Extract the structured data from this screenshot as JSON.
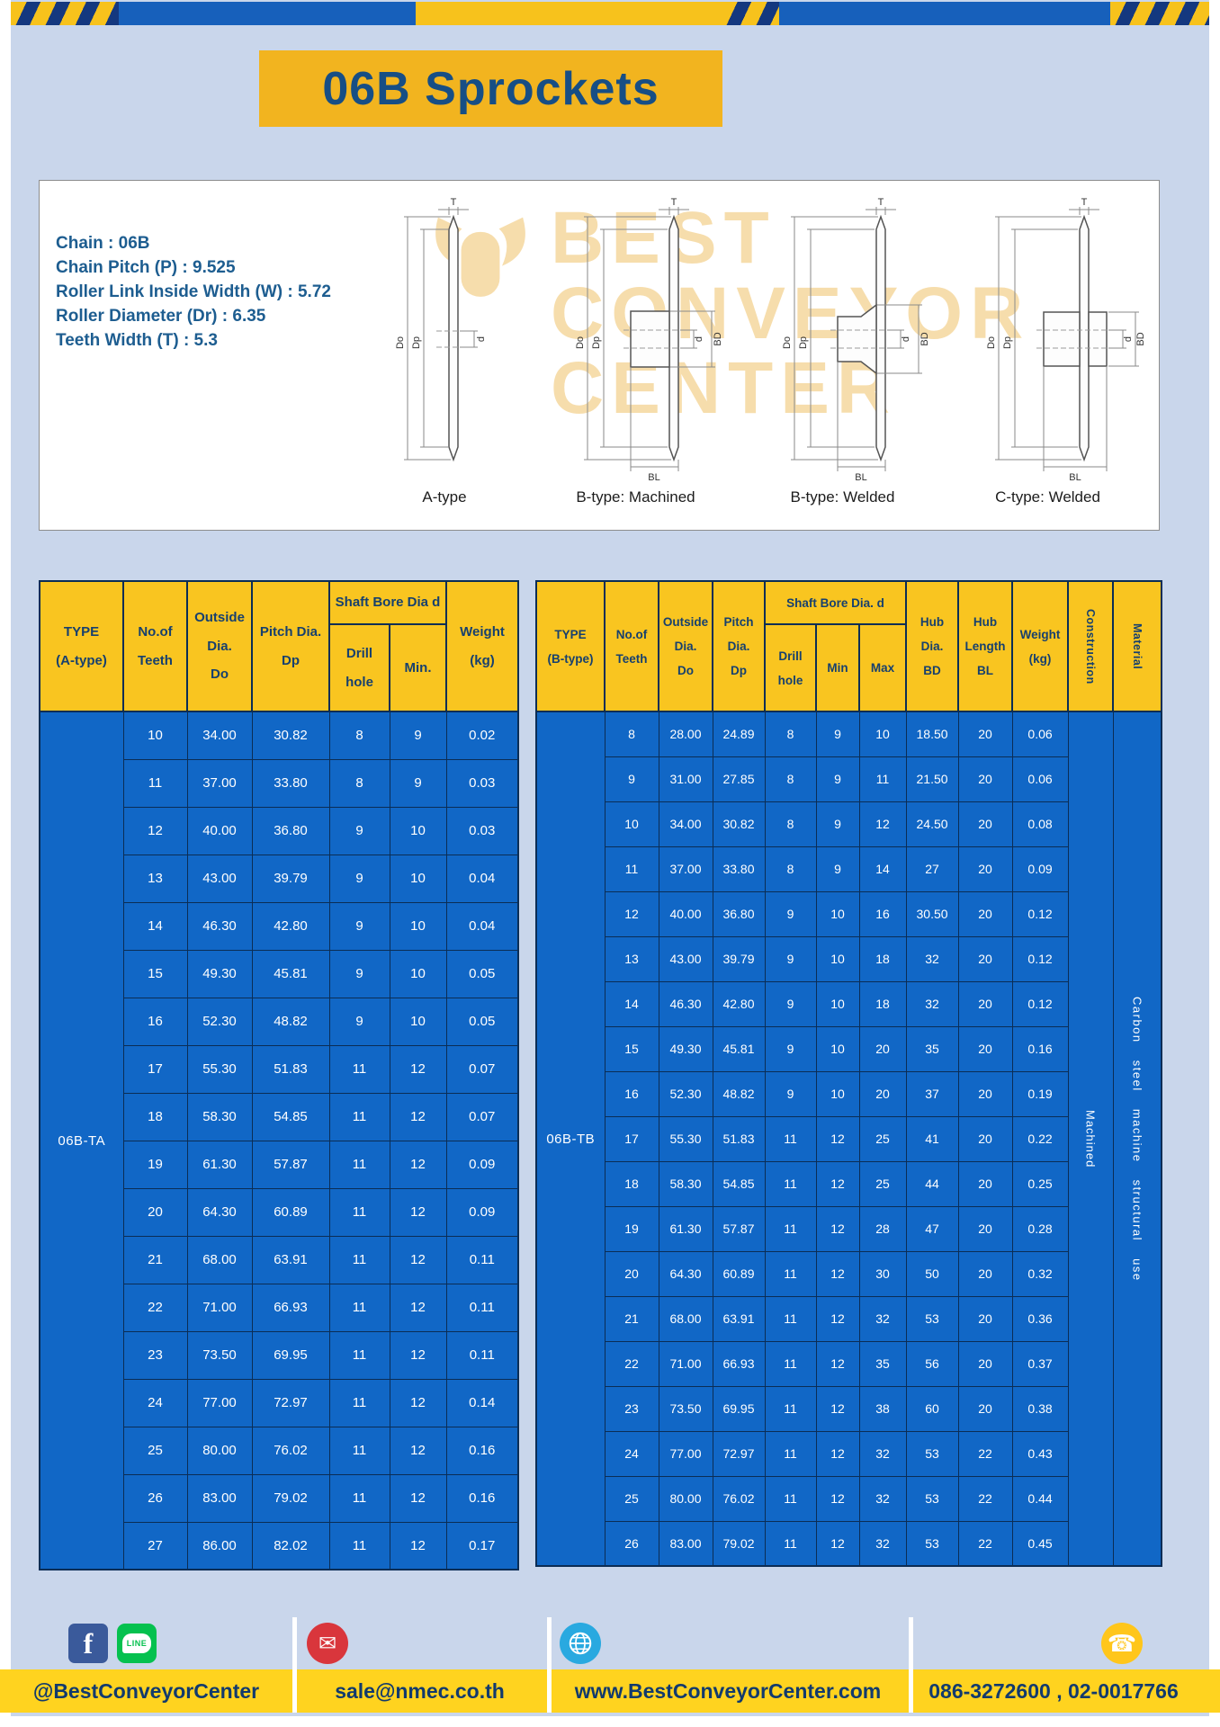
{
  "title": "06B Sprockets",
  "colors": {
    "table_blue": "#1167c6",
    "header_yellow": "#f9c520",
    "banner_yellow": "#f2b41f",
    "footer_yellow": "#ffd31f",
    "dark_blue_text": "#174e85"
  },
  "specs": {
    "lines": [
      "Chain : 06B",
      "Chain Pitch (P) : 9.525",
      "Roller Link Inside Width (W) : 5.72",
      "Roller Diameter (Dr) : 6.35",
      "Teeth Width (T) : 5.3"
    ]
  },
  "diagrams": {
    "captions": [
      "A-type",
      "B-type: Machined",
      "B-type: Welded",
      "C-type: Welded"
    ],
    "labels": {
      "t": "T",
      "do": "Do",
      "dp": "Dp",
      "d": "d",
      "bd": "BD",
      "bl": "BL"
    },
    "watermark_lines": [
      "BEST",
      "CONVEYOR",
      "CENTER"
    ]
  },
  "table_a": {
    "type_header": "TYPE\n(A-type)",
    "type_value": "06B-TA",
    "headers": {
      "teeth": "No.of\nTeeth",
      "outside": "Outside\nDia.\nDo",
      "pitch": "Pitch Dia.\nDp",
      "bore_group": "Shaft Bore Dia d",
      "drill": "Drill hole",
      "min": "Min.",
      "weight": "Weight\n(kg)"
    },
    "rows": [
      [
        "10",
        "34.00",
        "30.82",
        "8",
        "9",
        "0.02"
      ],
      [
        "11",
        "37.00",
        "33.80",
        "8",
        "9",
        "0.03"
      ],
      [
        "12",
        "40.00",
        "36.80",
        "9",
        "10",
        "0.03"
      ],
      [
        "13",
        "43.00",
        "39.79",
        "9",
        "10",
        "0.04"
      ],
      [
        "14",
        "46.30",
        "42.80",
        "9",
        "10",
        "0.04"
      ],
      [
        "15",
        "49.30",
        "45.81",
        "9",
        "10",
        "0.05"
      ],
      [
        "16",
        "52.30",
        "48.82",
        "9",
        "10",
        "0.05"
      ],
      [
        "17",
        "55.30",
        "51.83",
        "11",
        "12",
        "0.07"
      ],
      [
        "18",
        "58.30",
        "54.85",
        "11",
        "12",
        "0.07"
      ],
      [
        "19",
        "61.30",
        "57.87",
        "11",
        "12",
        "0.09"
      ],
      [
        "20",
        "64.30",
        "60.89",
        "11",
        "12",
        "0.09"
      ],
      [
        "21",
        "68.00",
        "63.91",
        "11",
        "12",
        "0.11"
      ],
      [
        "22",
        "71.00",
        "66.93",
        "11",
        "12",
        "0.11"
      ],
      [
        "23",
        "73.50",
        "69.95",
        "11",
        "12",
        "0.11"
      ],
      [
        "24",
        "77.00",
        "72.97",
        "11",
        "12",
        "0.14"
      ],
      [
        "25",
        "80.00",
        "76.02",
        "11",
        "12",
        "0.16"
      ],
      [
        "26",
        "83.00",
        "79.02",
        "11",
        "12",
        "0.16"
      ],
      [
        "27",
        "86.00",
        "82.02",
        "11",
        "12",
        "0.17"
      ]
    ]
  },
  "table_b": {
    "type_header": "TYPE\n(B-type)",
    "type_value": "06B-TB",
    "headers": {
      "teeth": "No.of\nTeeth",
      "outside": "Outside\nDia.\nDo",
      "pitch": "Pitch\nDia.\nDp",
      "bore_group": "Shaft Bore Dia.  d",
      "drill": "Drill hole",
      "min": "Min",
      "max": "Max",
      "hub_dia": "Hub\nDia.\nBD",
      "hub_len": "Hub\nLength\nBL",
      "weight": "Weight\n(kg)",
      "construction": "Construction",
      "material": "Material"
    },
    "construction_value": "Machined",
    "material_value": "Carbon steel machine structural use",
    "rows": [
      [
        "8",
        "28.00",
        "24.89",
        "8",
        "9",
        "10",
        "18.50",
        "20",
        "0.06"
      ],
      [
        "9",
        "31.00",
        "27.85",
        "8",
        "9",
        "11",
        "21.50",
        "20",
        "0.06"
      ],
      [
        "10",
        "34.00",
        "30.82",
        "8",
        "9",
        "12",
        "24.50",
        "20",
        "0.08"
      ],
      [
        "11",
        "37.00",
        "33.80",
        "8",
        "9",
        "14",
        "27",
        "20",
        "0.09"
      ],
      [
        "12",
        "40.00",
        "36.80",
        "9",
        "10",
        "16",
        "30.50",
        "20",
        "0.12"
      ],
      [
        "13",
        "43.00",
        "39.79",
        "9",
        "10",
        "18",
        "32",
        "20",
        "0.12"
      ],
      [
        "14",
        "46.30",
        "42.80",
        "9",
        "10",
        "18",
        "32",
        "20",
        "0.12"
      ],
      [
        "15",
        "49.30",
        "45.81",
        "9",
        "10",
        "20",
        "35",
        "20",
        "0.16"
      ],
      [
        "16",
        "52.30",
        "48.82",
        "9",
        "10",
        "20",
        "37",
        "20",
        "0.19"
      ],
      [
        "17",
        "55.30",
        "51.83",
        "11",
        "12",
        "25",
        "41",
        "20",
        "0.22"
      ],
      [
        "18",
        "58.30",
        "54.85",
        "11",
        "12",
        "25",
        "44",
        "20",
        "0.25"
      ],
      [
        "19",
        "61.30",
        "57.87",
        "11",
        "12",
        "28",
        "47",
        "20",
        "0.28"
      ],
      [
        "20",
        "64.30",
        "60.89",
        "11",
        "12",
        "30",
        "50",
        "20",
        "0.32"
      ],
      [
        "21",
        "68.00",
        "63.91",
        "11",
        "12",
        "32",
        "53",
        "20",
        "0.36"
      ],
      [
        "22",
        "71.00",
        "66.93",
        "11",
        "12",
        "35",
        "56",
        "20",
        "0.37"
      ],
      [
        "23",
        "73.50",
        "69.95",
        "11",
        "12",
        "38",
        "60",
        "20",
        "0.38"
      ],
      [
        "24",
        "77.00",
        "72.97",
        "11",
        "12",
        "32",
        "53",
        "22",
        "0.43"
      ],
      [
        "25",
        "80.00",
        "76.02",
        "11",
        "12",
        "32",
        "53",
        "22",
        "0.44"
      ],
      [
        "26",
        "83.00",
        "79.02",
        "11",
        "12",
        "32",
        "53",
        "22",
        "0.45"
      ]
    ]
  },
  "footer": {
    "social_text": "@BestConveyorCenter",
    "email": "sale@nmec.co.th",
    "website": "www.BestConveyorCenter.com",
    "phone": "086-3272600 , 02-0017766",
    "line_label": "LINE",
    "facebook_letter": "f"
  },
  "icons": {
    "mail": "✉",
    "phone": "☎"
  }
}
